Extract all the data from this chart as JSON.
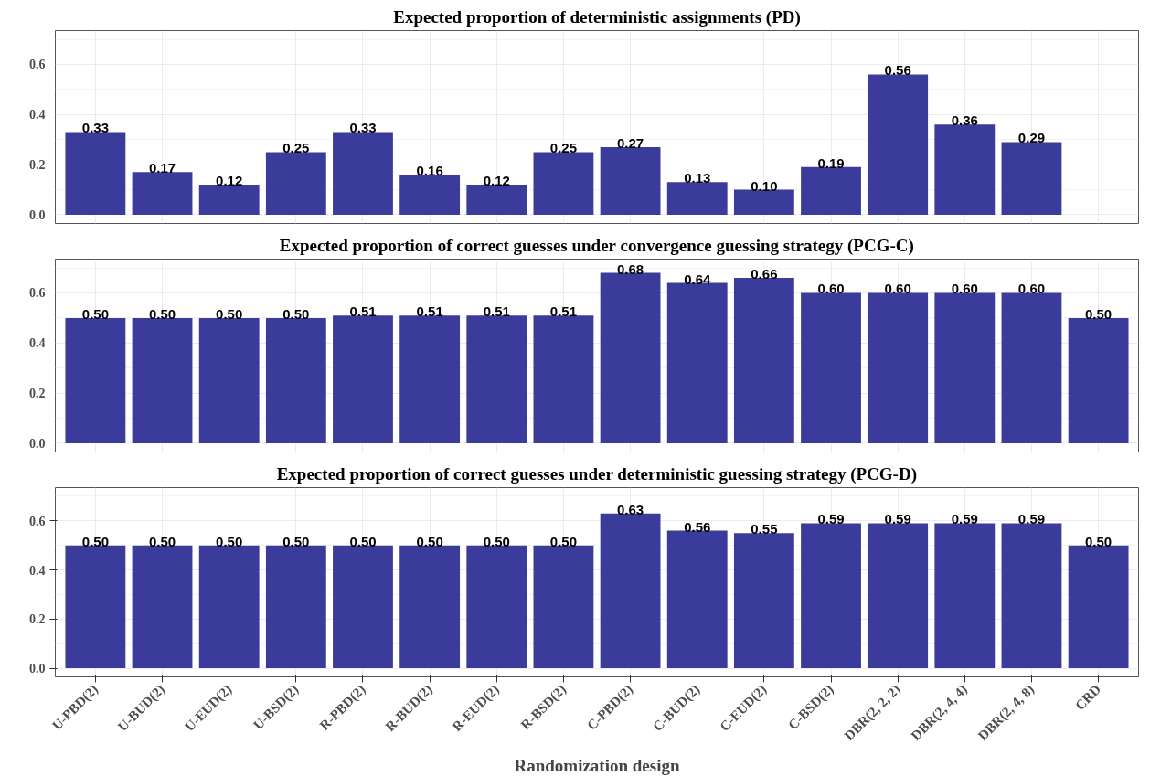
{
  "chart_data": [
    {
      "type": "bar",
      "title": "Expected proportion of deterministic assignments (PD)",
      "categories": [
        null,
        null,
        null,
        null,
        null,
        null,
        null,
        null,
        null,
        null,
        null,
        null,
        null,
        null,
        null,
        null
      ],
      "values": [
        0.33,
        0.17,
        0.12,
        0.25,
        0.33,
        0.16,
        0.12,
        0.25,
        0.27,
        0.13,
        0.1,
        0.19,
        0.56,
        0.36,
        0.29,
        null
      ],
      "value_labels": [
        "0.33",
        "0.17",
        "0.12",
        "0.25",
        "0.33",
        "0.16",
        "0.12",
        "0.25",
        "0.27",
        "0.13",
        "0.10",
        "0.19",
        "0.56",
        "0.36",
        "0.29",
        null
      ],
      "color": "#3b3b9b",
      "ylim": [
        -0.035,
        0.735
      ],
      "yticks": [
        {
          "value": 0,
          "label": "0.0"
        },
        {
          "value": 0.2,
          "label": "0.2"
        },
        {
          "value": 0.4,
          "label": "0.4"
        },
        {
          "value": 0.6,
          "label": "0.6"
        }
      ],
      "grid": true,
      "tick_labels": "y"
    },
    {
      "type": "bar",
      "title": "Expected proportion of correct guesses under convergence guessing strategy (PCG-C)",
      "categories": [
        null,
        null,
        null,
        null,
        null,
        null,
        null,
        null,
        null,
        null,
        null,
        null,
        null,
        null,
        null,
        null
      ],
      "values": [
        0.5,
        0.5,
        0.5,
        0.5,
        0.51,
        0.51,
        0.51,
        0.51,
        0.68,
        0.64,
        0.66,
        0.6,
        0.6,
        0.6,
        0.6,
        0.5
      ],
      "value_labels": [
        "0.50",
        "0.50",
        "0.50",
        "0.50",
        "0.51",
        "0.51",
        "0.51",
        "0.51",
        "0.68",
        "0.64",
        "0.66",
        "0.60",
        "0.60",
        "0.60",
        "0.60",
        "0.50"
      ],
      "color": "#3b3b9b",
      "ylim": [
        -0.035,
        0.735
      ],
      "yticks": [
        {
          "value": 0,
          "label": "0.0"
        },
        {
          "value": 0.2,
          "label": "0.2"
        },
        {
          "value": 0.4,
          "label": "0.4"
        },
        {
          "value": 0.6,
          "label": "0.6"
        }
      ],
      "grid": true,
      "tick_labels": "y"
    },
    {
      "type": "bar",
      "title": "Expected proportion of correct guesses under deterministic guessing strategy (PCG-D)",
      "xlabel": "Randomization design",
      "categories": [
        "U-PBD(2)",
        "U-BUD(2)",
        "U-EUD(2)",
        "U-BSD(2)",
        "R-PBD(2)",
        "R-BUD(2)",
        "R-EUD(2)",
        "R-BSD(2)",
        "C-PBD(2)",
        "C-BUD(2)",
        "C-EUD(2)",
        "C-BSD(2)",
        "DBR(2, 2, 2)",
        "DBR(2, 4, 4)",
        "DBR(2, 4, 8)",
        "CRD"
      ],
      "values": [
        0.5,
        0.5,
        0.5,
        0.5,
        0.5,
        0.5,
        0.5,
        0.5,
        0.63,
        0.56,
        0.55,
        0.59,
        0.59,
        0.59,
        0.59,
        0.5
      ],
      "value_labels": [
        "0.50",
        "0.50",
        "0.50",
        "0.50",
        "0.50",
        "0.50",
        "0.50",
        "0.50",
        "0.63",
        "0.56",
        "0.55",
        "0.59",
        "0.59",
        "0.59",
        "0.59",
        "0.50"
      ],
      "color": "#3b3b9b",
      "ylim": [
        -0.035,
        0.735
      ],
      "yticks": [
        {
          "value": 0,
          "label": "0.0"
        },
        {
          "value": 0.2,
          "label": "0.2"
        },
        {
          "value": 0.4,
          "label": "0.4"
        },
        {
          "value": 0.6,
          "label": "0.6"
        }
      ],
      "grid": true
    }
  ]
}
